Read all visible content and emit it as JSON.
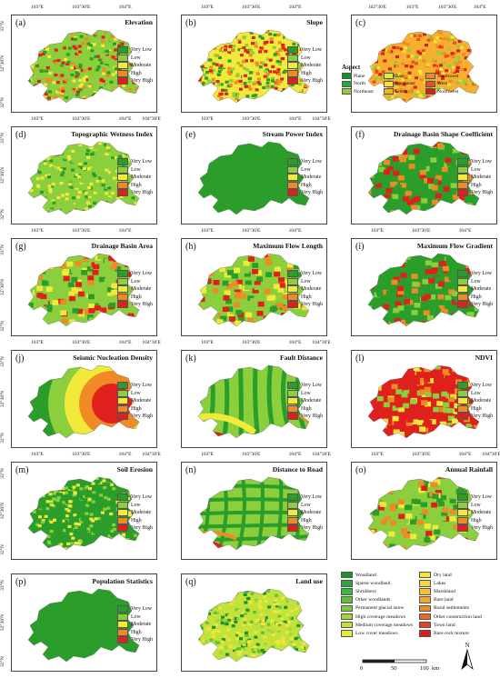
{
  "ticks": {
    "lon_a": [
      "103°E",
      "103°30'E",
      "104°E"
    ],
    "lon_b": [
      "103°E",
      "103°30'E",
      "104°E",
      "104°30'E"
    ],
    "lon_c": [
      "102°30'E",
      "103°E",
      "103°30'E",
      "104°E"
    ],
    "lat": [
      "33°N",
      "32°30'N",
      "32°N"
    ]
  },
  "classes": [
    "Very Low",
    "Low",
    "Moderate",
    "High",
    "Very High"
  ],
  "class_colors": [
    "#2a9d2a",
    "#8ccf3c",
    "#f2ea3a",
    "#f08a24",
    "#e0201c"
  ],
  "panels": [
    {
      "label": "(a)",
      "title": "Elevation"
    },
    {
      "label": "(b)",
      "title": "Slope"
    },
    {
      "label": "(c)",
      "title": ""
    },
    {
      "label": "(d)",
      "title": "Topographic Wetness Index"
    },
    {
      "label": "(e)",
      "title": "Stream Power Index"
    },
    {
      "label": "(f)",
      "title": "Drainage Basin Shape Coefficient"
    },
    {
      "label": "(g)",
      "title": "Drainage Basin Area"
    },
    {
      "label": "(h)",
      "title": "Maximum Flow Length"
    },
    {
      "label": "(i)",
      "title": "Maximum Flow Gradient"
    },
    {
      "label": "(j)",
      "title": "Seismic Nucleation Density"
    },
    {
      "label": "(k)",
      "title": "Fault Distance"
    },
    {
      "label": "(l)",
      "title": "NDVI"
    },
    {
      "label": "(m)",
      "title": "Soil Erosion"
    },
    {
      "label": "(n)",
      "title": "Distance to Road"
    },
    {
      "label": "(o)",
      "title": "Annual Rainfall"
    },
    {
      "label": "(p)",
      "title": "Population Statistics"
    },
    {
      "label": "(q)",
      "title": "Land use"
    }
  ],
  "aspect": {
    "title": "Aspect",
    "items": [
      {
        "name": "Plane",
        "color": "#1f8f2a"
      },
      {
        "name": "East",
        "color": "#d7ef3a"
      },
      {
        "name": "Southwest",
        "color": "#f08a24"
      },
      {
        "name": "North",
        "color": "#2aa83a"
      },
      {
        "name": "Southeast",
        "color": "#f6e23a"
      },
      {
        "name": "West",
        "color": "#e8501e"
      },
      {
        "name": "Northeast",
        "color": "#8ccf3c"
      },
      {
        "name": "South",
        "color": "#f6b030"
      },
      {
        "name": "Northwest",
        "color": "#d81e1a"
      }
    ]
  },
  "landuse": {
    "items": [
      {
        "name": "Woodland",
        "color": "#1f8f2a"
      },
      {
        "name": "Dry land",
        "color": "#f6e23a"
      },
      {
        "name": "Sparse woodland",
        "color": "#2aa83a"
      },
      {
        "name": "Lakes",
        "color": "#f6d53a"
      },
      {
        "name": "Shrubbery",
        "color": "#3cb63c"
      },
      {
        "name": "Marshland",
        "color": "#f6c030"
      },
      {
        "name": "Other woodlands",
        "color": "#5ec23c"
      },
      {
        "name": "Bare land",
        "color": "#f4a62c"
      },
      {
        "name": "Permanent glacial snow",
        "color": "#7ccc3c"
      },
      {
        "name": "Rural settlements",
        "color": "#f08a24"
      },
      {
        "name": "High coverage meadows",
        "color": "#9ed63c"
      },
      {
        "name": "Other construction land",
        "color": "#ec6a22"
      },
      {
        "name": "Medium coverage meadows",
        "color": "#c2e23a"
      },
      {
        "name": "Town land",
        "color": "#e8401e"
      },
      {
        "name": "Low cover meadows",
        "color": "#e2ec3a"
      },
      {
        "name": "Bare rock texture",
        "color": "#d81e1a"
      }
    ]
  },
  "scale": {
    "t0": "0",
    "t1": "50",
    "t2": "100",
    "unit": "km"
  },
  "north": "N"
}
